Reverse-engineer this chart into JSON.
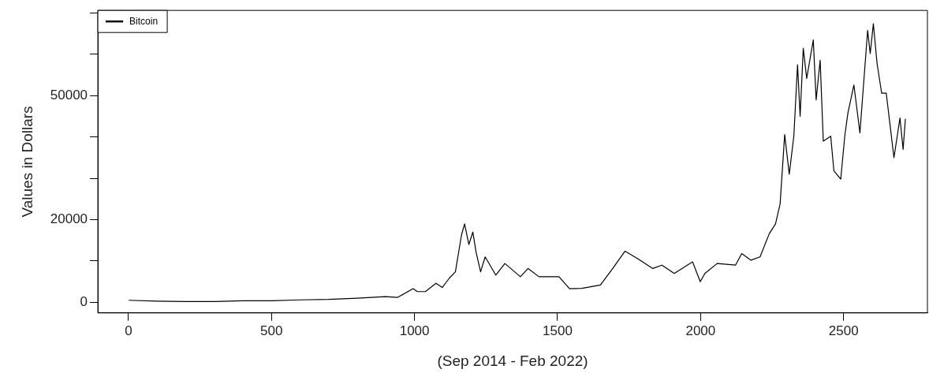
{
  "chart_data": {
    "type": "line",
    "xlabel": "(Sep 2014 - Feb 2022)",
    "ylabel": "Values in Dollars",
    "xlim": [
      -107,
      2793
    ],
    "ylim": [
      -2560,
      70640
    ],
    "xticks": [
      0,
      500,
      1000,
      1500,
      2000,
      2500
    ],
    "yticks": [
      0,
      {
        "value": 10000,
        "label": null
      },
      20000,
      {
        "value": 30000,
        "label": null
      },
      {
        "value": 40000,
        "label": null
      },
      50000,
      {
        "value": 60000,
        "label": null
      },
      {
        "value": 70000,
        "label": null
      }
    ],
    "grid": false,
    "legend": "top left",
    "marker": "none",
    "line_style": "solid",
    "series": [
      {
        "name": "Bitcoin",
        "color": "#000000",
        "x": [
          1,
          100,
          200,
          300,
          400,
          500,
          600,
          700,
          800,
          898,
          941,
          995,
          1010,
          1038,
          1075,
          1097,
          1121,
          1143,
          1164,
          1175,
          1190,
          1204,
          1215,
          1231,
          1247,
          1284,
          1316,
          1370,
          1397,
          1435,
          1505,
          1542,
          1585,
          1650,
          1693,
          1736,
          1779,
          1833,
          1865,
          1908,
          1972,
          1999,
          2015,
          2058,
          2122,
          2144,
          2176,
          2208,
          2240,
          2262,
          2278,
          2294,
          2310,
          2326,
          2339,
          2348,
          2359,
          2371,
          2394,
          2404,
          2418,
          2429,
          2455,
          2466,
          2490,
          2504,
          2515,
          2536,
          2557,
          2584,
          2593,
          2604,
          2617,
          2633,
          2649,
          2665,
          2676,
          2697,
          2708,
          2716
        ],
        "values": [
          500,
          300,
          200,
          200,
          400,
          400,
          600,
          700,
          1000,
          1400,
          1200,
          3300,
          2600,
          2600,
          4600,
          3600,
          5800,
          7400,
          16200,
          19000,
          14000,
          17000,
          12200,
          7400,
          11000,
          6600,
          9400,
          6200,
          8200,
          6200,
          6200,
          3300,
          3400,
          4200,
          8200,
          12400,
          10600,
          8200,
          9000,
          7000,
          9800,
          5000,
          7000,
          9400,
          9000,
          11800,
          10200,
          11000,
          16600,
          19000,
          23800,
          40600,
          31000,
          40200,
          57500,
          45000,
          61500,
          54200,
          63500,
          49000,
          58600,
          39000,
          40200,
          31800,
          29800,
          40200,
          45800,
          52600,
          41000,
          65800,
          60200,
          67400,
          57800,
          50600,
          50600,
          41400,
          35000,
          44600,
          37000,
          44400
        ]
      }
    ]
  }
}
